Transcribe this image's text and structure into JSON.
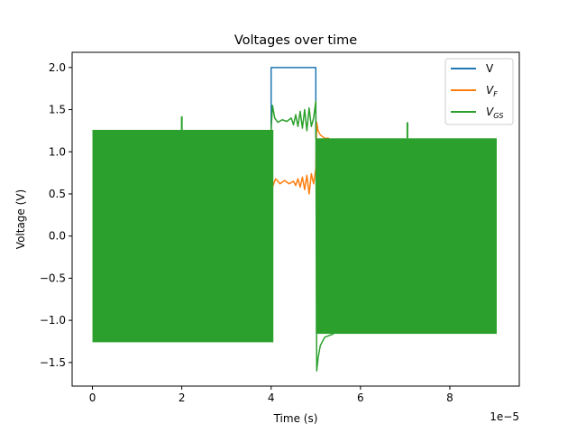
{
  "chart_data": {
    "type": "line",
    "title": "Voltages over time",
    "xlabel": "Time (s)",
    "ylabel": "Voltage (V)",
    "x_offset_text": "1e−5",
    "xlim": [
      -0.455,
      9.555
    ],
    "ylim": [
      -1.78,
      2.18
    ],
    "xticks": [
      0,
      2,
      4,
      6,
      8
    ],
    "xtick_labels": [
      "0",
      "2",
      "4",
      "6",
      "8"
    ],
    "yticks": [
      -1.5,
      -1.0,
      -0.5,
      0.0,
      0.5,
      1.0,
      1.5,
      2.0
    ],
    "ytick_labels": [
      "−1.5",
      "−1.0",
      "−0.5",
      "0.0",
      "0.5",
      "1.0",
      "1.5",
      "2.0"
    ],
    "grid": false,
    "legend_position": "upper right",
    "series": [
      {
        "name": "V",
        "legend_main": "V",
        "legend_sub": "",
        "color": "#1f77b4",
        "x": [
          4.0,
          4.0,
          5.0,
          5.0
        ],
        "y": [
          1.26,
          2.0,
          2.0,
          1.16
        ]
      },
      {
        "name": "V_F",
        "legend_main": "V",
        "legend_sub": "F",
        "color": "#ff7f0e",
        "x": [
          4.0,
          4.03,
          4.1,
          4.2,
          4.3,
          4.4,
          4.5,
          4.55,
          4.6,
          4.65,
          4.7,
          4.75,
          4.8,
          4.85,
          4.9,
          4.95,
          5.0,
          5.02,
          5.05,
          5.1,
          5.15,
          5.2,
          5.3
        ],
        "y": [
          0.3,
          0.58,
          0.68,
          0.62,
          0.66,
          0.62,
          0.65,
          0.6,
          0.68,
          0.58,
          0.7,
          0.55,
          0.72,
          0.5,
          0.74,
          0.62,
          0.8,
          1.35,
          1.25,
          1.2,
          1.18,
          1.16,
          1.16
        ]
      },
      {
        "name": "V_GS",
        "legend_main": "V",
        "legend_sub": "GS",
        "color": "#2ca02c",
        "band_segments": [
          {
            "x_start": 0.0,
            "x_end": 4.05,
            "upper": 1.26,
            "lower": -1.26
          },
          {
            "x_start": 5.0,
            "x_end": 9.05,
            "upper": 1.16,
            "lower": -1.16
          }
        ],
        "spikes": [
          {
            "x": 2.0,
            "y": 1.42
          },
          {
            "x": 7.05,
            "y": 1.35
          }
        ],
        "x": [
          4.0,
          4.03,
          4.08,
          4.15,
          4.25,
          4.35,
          4.45,
          4.5,
          4.55,
          4.6,
          4.65,
          4.7,
          4.75,
          4.8,
          4.85,
          4.9,
          4.95,
          5.0,
          5.02,
          5.05,
          5.1,
          5.2,
          5.3,
          5.4
        ],
        "y": [
          1.26,
          1.55,
          1.4,
          1.35,
          1.38,
          1.36,
          1.4,
          1.32,
          1.44,
          1.3,
          1.48,
          1.28,
          1.5,
          1.25,
          1.52,
          1.3,
          1.4,
          1.6,
          -1.6,
          -1.45,
          -1.3,
          -1.2,
          -1.18,
          -1.16
        ]
      }
    ]
  }
}
